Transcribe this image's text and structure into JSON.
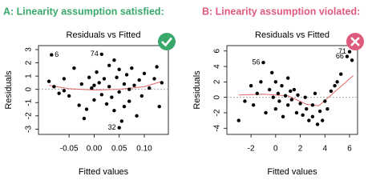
{
  "chart_data": [
    {
      "type": "scatter",
      "heading": "A: Linearity assumption satisfied:",
      "heading_color": "#3aa86b",
      "title": "Residuals vs Fitted",
      "xlabel": "Fitted values",
      "ylabel": "Residuals",
      "xlim": [
        -0.111,
        0.148
      ],
      "ylim": [
        -3.4,
        3.3
      ],
      "xticks": [
        {
          "value": -0.05,
          "label": "-0.05"
        },
        {
          "value": 0,
          "label": "0.00"
        },
        {
          "value": 0.05,
          "label": "0.05"
        },
        {
          "value": 0.1,
          "label": "0.10"
        }
      ],
      "yticks": [
        -3,
        -2,
        -1,
        0,
        1,
        2,
        3
      ],
      "hline": 0,
      "color": "#000000",
      "smooth_color": "#e06666",
      "x": [
        -0.085,
        0.015,
        0.05,
        -0.09,
        -0.08,
        -0.07,
        -0.06,
        -0.05,
        -0.04,
        -0.03,
        -0.025,
        -0.02,
        -0.015,
        -0.01,
        -0.005,
        0.0,
        0.005,
        0.01,
        0.015,
        0.02,
        0.025,
        0.03,
        0.03,
        0.035,
        0.04,
        0.04,
        0.045,
        0.05,
        0.05,
        0.055,
        0.06,
        0.06,
        0.065,
        0.07,
        0.075,
        0.08,
        0.085,
        0.09,
        0.095,
        0.1,
        0.11,
        0.12,
        0.125,
        0.13,
        0.135,
        -0.06,
        0.0,
        0.07
      ],
      "y": [
        2.6,
        2.65,
        -2.9,
        0.6,
        0.2,
        -0.3,
        0.8,
        -0.5,
        1.6,
        -1.2,
        0.4,
        -2.2,
        -1.5,
        0.9,
        0.1,
        -0.8,
        1.3,
        0.5,
        -0.4,
        0.8,
        -1.1,
        1.8,
        0.2,
        -0.6,
        2.2,
        -1.6,
        0.9,
        -0.2,
        1.5,
        -2.4,
        0.4,
        -1.3,
        1.1,
        -0.9,
        1.6,
        0.3,
        -2.0,
        0.7,
        -0.5,
        1.2,
        0.1,
        0.8,
        1.7,
        -1.3,
        0.5,
        -0.1,
        0.3,
        0.0
      ],
      "point_labels": [
        "6",
        "74",
        "32",
        null,
        null,
        null,
        null,
        null,
        null,
        null,
        null,
        null,
        null,
        null,
        null,
        null,
        null,
        null,
        null,
        null,
        null,
        null,
        null,
        null,
        null,
        null,
        null,
        null,
        null,
        null,
        null,
        null,
        null,
        null,
        null,
        null,
        null,
        null,
        null,
        null,
        null,
        null,
        null,
        null,
        null,
        null,
        null,
        null
      ],
      "smooth_x": [
        -0.09,
        -0.05,
        0,
        0.05,
        0.1,
        0.135
      ],
      "smooth_y": [
        0.3,
        0.05,
        -0.05,
        0.0,
        0.2,
        0.6
      ]
    },
    {
      "type": "scatter",
      "heading": "B: Linearity assumption violated:",
      "heading_color": "#e05a7e",
      "title": "Residuals vs Fitted",
      "xlabel": "Fitted values",
      "ylabel": "Residuals",
      "xlim": [
        -3.96,
        6.65
      ],
      "ylim": [
        -4.8,
        6.7
      ],
      "xticks": [
        -2,
        0,
        2,
        4,
        6
      ],
      "yticks": [
        -4,
        -2,
        0,
        2,
        4,
        6
      ],
      "hline": 0,
      "color": "#000000",
      "smooth_color": "#e06666",
      "x": [
        -1,
        6.0,
        5.8,
        -3,
        -2.5,
        -2,
        -1.8,
        -1.5,
        -1.2,
        -0.8,
        -0.5,
        -0.3,
        -0.2,
        0,
        0,
        0.2,
        0.3,
        0.5,
        0.6,
        0.8,
        1,
        1,
        1.2,
        1.3,
        1.5,
        1.7,
        1.8,
        2,
        2.2,
        2.4,
        2.5,
        2.7,
        3,
        3,
        3.2,
        3.4,
        3.6,
        3.8,
        4,
        4.2,
        4.5,
        4.8,
        5,
        5.3,
        6.2
      ],
      "y": [
        4.5,
        5.9,
        5.3,
        -3,
        -0.5,
        1.5,
        -1,
        0.5,
        2,
        -2,
        1,
        3.2,
        0,
        -1.5,
        2,
        0.5,
        -0.5,
        1.5,
        -2.5,
        0.2,
        -1,
        2.5,
        0.8,
        -0.3,
        1,
        -2,
        0.3,
        -0.8,
        -2.3,
        0,
        -1.5,
        -3,
        -1,
        -2.5,
        0.5,
        -3.5,
        -1.8,
        -3,
        -0.5,
        -1.5,
        0.8,
        1.5,
        2,
        3,
        4.8
      ],
      "point_labels": [
        "56",
        "71",
        "66",
        null,
        null,
        null,
        null,
        null,
        null,
        null,
        null,
        null,
        null,
        null,
        null,
        null,
        null,
        null,
        null,
        null,
        null,
        null,
        null,
        null,
        null,
        null,
        null,
        null,
        null,
        null,
        null,
        null,
        null,
        null,
        null,
        null,
        null,
        null,
        null,
        null,
        null,
        null,
        null,
        null,
        null
      ],
      "smooth_x": [
        -3,
        -1,
        1,
        2.5,
        3.5,
        5,
        6.3
      ],
      "smooth_y": [
        0.3,
        0.4,
        0.2,
        -0.9,
        -1.1,
        1,
        2.8
      ]
    }
  ]
}
